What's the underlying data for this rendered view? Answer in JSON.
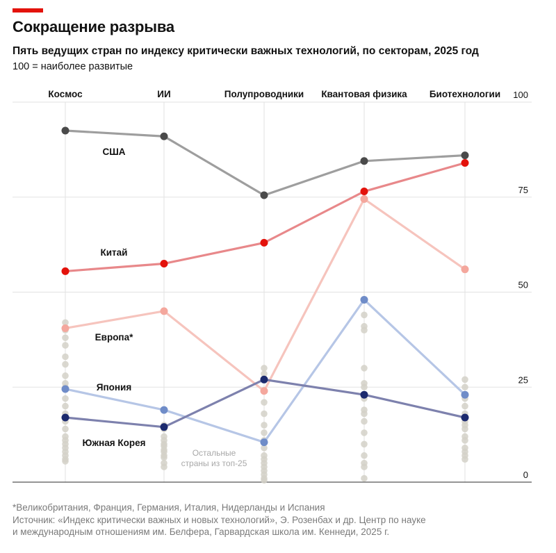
{
  "header": {
    "title": "Сокращение разрыва",
    "subtitle": "Пять ведущих стран по индексу критически важных технологий, по секторам, 2025 год",
    "note": "100 = наиболее развитые"
  },
  "footnote": {
    "line1": "*Великобритания, Франция, Германия, Италия, Нидерланды и Испания",
    "line2": "Источник: «Индекс критически важных и новых технологий», Э. Розенбах и др. Центр по науке",
    "line3": "и международным отношениям им. Белфера, Гарвардская школа им. Кеннеди, 2025 г."
  },
  "colors": {
    "accent": "#e3120b",
    "usa": "#9e9e9e",
    "usa_dot": "#4a4a4a",
    "china": "#e8888a",
    "china_dot": "#e3120b",
    "europe": "#f6c4bd",
    "europe_dot": "#f4a79d",
    "japan": "#b6c6e6",
    "japan_dot": "#6f8cc8",
    "korea": "#7d81ad",
    "korea_dot": "#1c2a6e",
    "others": "#d3d1c8",
    "grid": "#e2e2e2",
    "baseline": "#555555"
  },
  "chart_data": {
    "type": "line",
    "title": "Сокращение разрыва",
    "categories": [
      "Космос",
      "ИИ",
      "Полупроводники",
      "Квантовая физика",
      "Биотехнологии"
    ],
    "ylim": [
      0,
      100
    ],
    "yticks": [
      0,
      25,
      50,
      75,
      100
    ],
    "grid": true,
    "series": [
      {
        "name": "США",
        "key": "usa",
        "values": [
          92.5,
          91,
          75.5,
          84.5,
          86
        ]
      },
      {
        "name": "Китай",
        "key": "china",
        "values": [
          55.5,
          57.5,
          63,
          76.5,
          84
        ]
      },
      {
        "name": "Европа*",
        "key": "europe",
        "values": [
          40.5,
          45,
          24,
          74.5,
          56
        ]
      },
      {
        "name": "Япония",
        "key": "japan",
        "values": [
          24.5,
          19,
          10.5,
          48,
          23
        ]
      },
      {
        "name": "Южная Корея",
        "key": "korea",
        "values": [
          17,
          14.5,
          27,
          23,
          17
        ]
      }
    ],
    "others_label": "Остальные страны из топ-25",
    "others": [
      [
        42,
        40,
        38,
        36,
        33,
        31,
        28,
        26,
        25,
        22,
        20,
        18,
        16,
        14,
        12,
        11,
        10,
        9,
        8,
        7,
        6,
        5.5
      ],
      [
        15,
        14,
        12,
        11,
        10,
        9.5,
        8.5,
        8,
        7,
        6.5,
        5,
        4
      ],
      [
        30,
        28.5,
        27,
        24,
        21,
        18,
        15,
        13,
        11,
        9,
        7,
        6,
        5,
        4,
        3,
        2,
        1,
        0.5
      ],
      [
        44,
        41,
        40,
        30,
        26,
        25,
        22,
        19,
        18,
        16,
        13,
        10,
        7,
        5,
        4,
        1
      ],
      [
        27,
        25,
        22,
        20,
        18,
        16,
        15,
        14,
        12,
        11,
        9,
        8,
        7,
        6
      ]
    ]
  }
}
